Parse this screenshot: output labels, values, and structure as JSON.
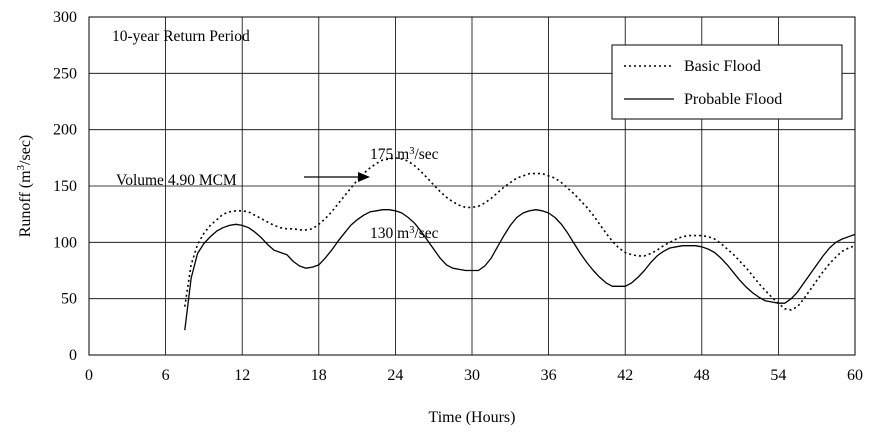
{
  "chart_data": {
    "type": "line",
    "title": "",
    "xlabel": "Time (Hours)",
    "ylabel_main": "Runoff (m",
    "ylabel_sup": "3",
    "ylabel_tail": "/sec)",
    "xlim": [
      0,
      60
    ],
    "ylim": [
      0,
      300
    ],
    "xticks": [
      "0",
      "6",
      "12",
      "18",
      "24",
      "30",
      "36",
      "42",
      "48",
      "54",
      "60"
    ],
    "yticks": [
      "0",
      "50",
      "100",
      "150",
      "200",
      "250",
      "300"
    ],
    "grid": true,
    "legend_position": "top-right",
    "series": [
      {
        "name": "Basic Flood",
        "style": "dotted",
        "color": "#000000",
        "points": [
          [
            7.5,
            43
          ],
          [
            8.0,
            80
          ],
          [
            8.5,
            98
          ],
          [
            9.0,
            108
          ],
          [
            9.5,
            115
          ],
          [
            10,
            120
          ],
          [
            10.5,
            125
          ],
          [
            11,
            127
          ],
          [
            11.5,
            128
          ],
          [
            12,
            128
          ],
          [
            12.5,
            127
          ],
          [
            13,
            124
          ],
          [
            13.5,
            121
          ],
          [
            14,
            118
          ],
          [
            14.5,
            115
          ],
          [
            15,
            113
          ],
          [
            15.5,
            112
          ],
          [
            16,
            112
          ],
          [
            16.5,
            111
          ],
          [
            17,
            111
          ],
          [
            17.5,
            112
          ],
          [
            18,
            116
          ],
          [
            18.5,
            121
          ],
          [
            19,
            127
          ],
          [
            19.5,
            134
          ],
          [
            20,
            141
          ],
          [
            20.5,
            148
          ],
          [
            21,
            155
          ],
          [
            21.5,
            161
          ],
          [
            22,
            166
          ],
          [
            22.5,
            170
          ],
          [
            23,
            173
          ],
          [
            23.5,
            174
          ],
          [
            24,
            175
          ],
          [
            24.5,
            174
          ],
          [
            25,
            172
          ],
          [
            25.5,
            168
          ],
          [
            26,
            163
          ],
          [
            26.5,
            157
          ],
          [
            27,
            151
          ],
          [
            27.5,
            145
          ],
          [
            28,
            140
          ],
          [
            28.5,
            136
          ],
          [
            29,
            133
          ],
          [
            29.5,
            131
          ],
          [
            30,
            131
          ],
          [
            30.5,
            132
          ],
          [
            31,
            135
          ],
          [
            31.5,
            139
          ],
          [
            32,
            144
          ],
          [
            32.5,
            149
          ],
          [
            33,
            153
          ],
          [
            33.5,
            157
          ],
          [
            34,
            159
          ],
          [
            34.5,
            161
          ],
          [
            35,
            161
          ],
          [
            35.5,
            161
          ],
          [
            36,
            159
          ],
          [
            36.5,
            157
          ],
          [
            37,
            153
          ],
          [
            37.5,
            148
          ],
          [
            38,
            143
          ],
          [
            38.5,
            137
          ],
          [
            39,
            131
          ],
          [
            39.5,
            124
          ],
          [
            40,
            116
          ],
          [
            40.5,
            108
          ],
          [
            41,
            101
          ],
          [
            41.5,
            95
          ],
          [
            42,
            91
          ],
          [
            42.5,
            89
          ],
          [
            43,
            88
          ],
          [
            43.5,
            88
          ],
          [
            44,
            90
          ],
          [
            44.5,
            93
          ],
          [
            45,
            97
          ],
          [
            45.5,
            100
          ],
          [
            46,
            103
          ],
          [
            46.5,
            105
          ],
          [
            47,
            106
          ],
          [
            47.5,
            106
          ],
          [
            48,
            106
          ],
          [
            48.5,
            105
          ],
          [
            49,
            103
          ],
          [
            49.5,
            99
          ],
          [
            50,
            94
          ],
          [
            50.5,
            89
          ],
          [
            51,
            83
          ],
          [
            51.5,
            77
          ],
          [
            52,
            70
          ],
          [
            52.5,
            63
          ],
          [
            53,
            57
          ],
          [
            53.5,
            51
          ],
          [
            54,
            46
          ],
          [
            54.5,
            41
          ],
          [
            55,
            40
          ],
          [
            55.5,
            43
          ],
          [
            56,
            50
          ],
          [
            56.5,
            58
          ],
          [
            57,
            66
          ],
          [
            57.5,
            74
          ],
          [
            58,
            81
          ],
          [
            58.5,
            87
          ],
          [
            59,
            92
          ],
          [
            59.5,
            95
          ],
          [
            60,
            97
          ]
        ]
      },
      {
        "name": "Probable Flood",
        "style": "solid",
        "color": "#000000",
        "points": [
          [
            7.5,
            22
          ],
          [
            8.0,
            68
          ],
          [
            8.5,
            90
          ],
          [
            9.0,
            99
          ],
          [
            9.5,
            105
          ],
          [
            10,
            110
          ],
          [
            10.5,
            113
          ],
          [
            11,
            115
          ],
          [
            11.5,
            116
          ],
          [
            12,
            115
          ],
          [
            12.5,
            113
          ],
          [
            13,
            109
          ],
          [
            13.5,
            104
          ],
          [
            14,
            98
          ],
          [
            14.5,
            93
          ],
          [
            15,
            91
          ],
          [
            15.5,
            89
          ],
          [
            16,
            83
          ],
          [
            16.5,
            79
          ],
          [
            17,
            77
          ],
          [
            17.5,
            78
          ],
          [
            18,
            80
          ],
          [
            18.5,
            86
          ],
          [
            19,
            93
          ],
          [
            19.5,
            101
          ],
          [
            20,
            108
          ],
          [
            20.5,
            115
          ],
          [
            21,
            120
          ],
          [
            21.5,
            124
          ],
          [
            22,
            127
          ],
          [
            22.5,
            128
          ],
          [
            23,
            129
          ],
          [
            23.5,
            129
          ],
          [
            24,
            128
          ],
          [
            24.5,
            126
          ],
          [
            25,
            122
          ],
          [
            25.5,
            117
          ],
          [
            26,
            110
          ],
          [
            26.5,
            102
          ],
          [
            27,
            94
          ],
          [
            27.5,
            86
          ],
          [
            28,
            80
          ],
          [
            28.5,
            77
          ],
          [
            29,
            76
          ],
          [
            29.5,
            75
          ],
          [
            30,
            75
          ],
          [
            30.5,
            75
          ],
          [
            31,
            79
          ],
          [
            31.5,
            86
          ],
          [
            32,
            96
          ],
          [
            32.5,
            106
          ],
          [
            33,
            115
          ],
          [
            33.5,
            122
          ],
          [
            34,
            126
          ],
          [
            34.5,
            128
          ],
          [
            35,
            129
          ],
          [
            35.5,
            128
          ],
          [
            36,
            126
          ],
          [
            36.5,
            122
          ],
          [
            37,
            116
          ],
          [
            37.5,
            108
          ],
          [
            38,
            99
          ],
          [
            38.5,
            90
          ],
          [
            39,
            82
          ],
          [
            39.5,
            75
          ],
          [
            40,
            69
          ],
          [
            40.5,
            64
          ],
          [
            41,
            61
          ],
          [
            41.5,
            61
          ],
          [
            42,
            61
          ],
          [
            42.5,
            64
          ],
          [
            43,
            69
          ],
          [
            43.5,
            75
          ],
          [
            44,
            82
          ],
          [
            44.5,
            88
          ],
          [
            45,
            92
          ],
          [
            45.5,
            95
          ],
          [
            46,
            96
          ],
          [
            46.5,
            97
          ],
          [
            47,
            97
          ],
          [
            47.5,
            97
          ],
          [
            48,
            96
          ],
          [
            48.5,
            94
          ],
          [
            49,
            91
          ],
          [
            49.5,
            86
          ],
          [
            50,
            80
          ],
          [
            50.5,
            73
          ],
          [
            51,
            66
          ],
          [
            51.5,
            60
          ],
          [
            52,
            55
          ],
          [
            52.5,
            51
          ],
          [
            53,
            48
          ],
          [
            53.5,
            47
          ],
          [
            54,
            46
          ],
          [
            54.5,
            46
          ],
          [
            55,
            50
          ],
          [
            55.5,
            56
          ],
          [
            56,
            64
          ],
          [
            56.5,
            72
          ],
          [
            57,
            80
          ],
          [
            57.5,
            88
          ],
          [
            58,
            95
          ],
          [
            58.5,
            100
          ],
          [
            59,
            103
          ],
          [
            59.5,
            105
          ],
          [
            60,
            107
          ]
        ]
      }
    ],
    "annotations": {
      "period": "10-year Return Period",
      "volume": "Volume 4.90 MCM",
      "peak1_main": "175 m",
      "peak1_sup": "3",
      "peak1_tail": "/sec",
      "peak2_main": "130 m",
      "peak2_sup": "3",
      "peak2_tail": "/sec"
    }
  }
}
